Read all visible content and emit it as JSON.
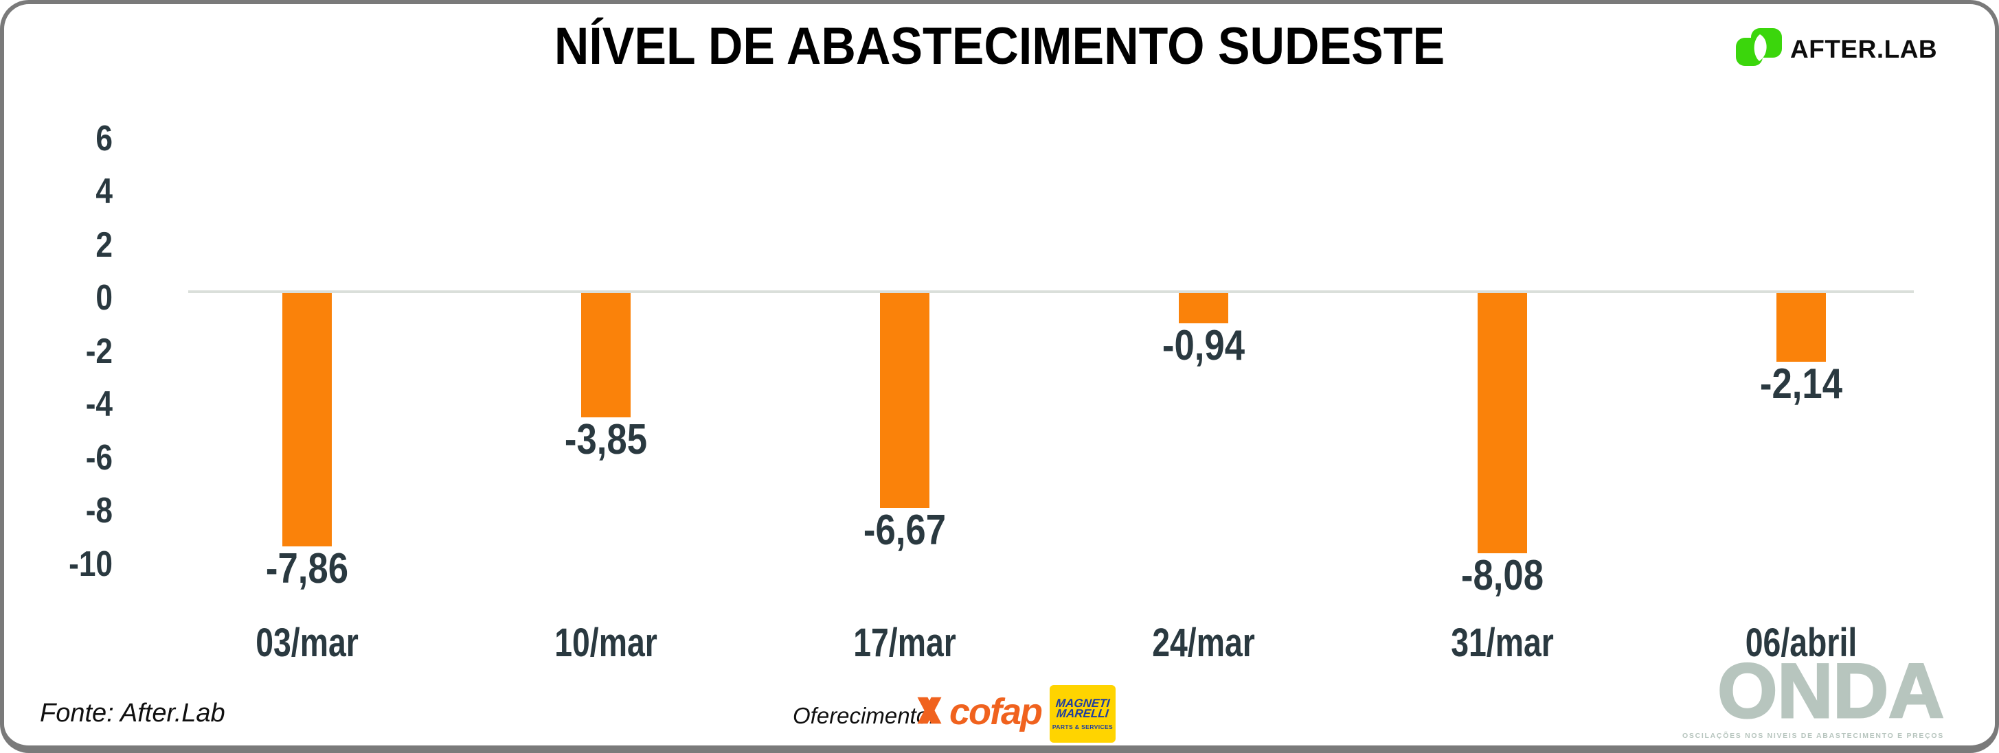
{
  "header": {
    "title": "NÍVEL DE ABASTECIMENTO SUDESTE",
    "brand": "AFTER.LAB"
  },
  "chart_data": {
    "type": "bar",
    "title": "NÍVEL DE ABASTECIMENTO SUDESTE",
    "categories": [
      "03/mar",
      "10/mar",
      "17/mar",
      "24/mar",
      "31/mar",
      "06/abril"
    ],
    "values": [
      -7.86,
      -3.85,
      -6.67,
      -0.94,
      -8.08,
      -2.14
    ],
    "value_labels": [
      "-7,86",
      "-3,85",
      "-6,67",
      "-0,94",
      "-8,08",
      "-2,14"
    ],
    "y_ticks": [
      6,
      4,
      2,
      0,
      -2,
      -4,
      -6,
      -8,
      -10
    ],
    "y_tick_labels": [
      "6",
      "4",
      "2",
      "0",
      "-2",
      "-4",
      "-6",
      "-8",
      "-10"
    ],
    "ylim": [
      -10,
      6
    ],
    "xlabel": "",
    "ylabel": "",
    "bar_color": "#FA820A",
    "label_color": "#2A3940",
    "zero_line_color": "#DADFDA",
    "grid": "zero-line-only",
    "legend": "none"
  },
  "footer": {
    "fonte": "Fonte: After.Lab",
    "oferecimento": "Oferecimento:",
    "cofap": "cofap",
    "magneti_line1": "MAGNETI",
    "magneti_line2": "MARELLI",
    "magneti_line3": "PARTS & SERVICES"
  },
  "watermark": {
    "onda": "ONDA",
    "tagline": "OSCILAÇÕES NOS NIVEIS DE ABASTECIMENTO E PREÇOS"
  },
  "colors": {
    "accent_orange": "#FA820A",
    "cofap_orange": "#F0621E",
    "afterlab_green": "#3BD60C",
    "magneti_yellow": "#FFD400",
    "magneti_blue": "#1E3EA1",
    "watermark_sage": "#B7C5BE",
    "frame_gray": "#7A7A7A",
    "text_slate": "#2A3940"
  }
}
